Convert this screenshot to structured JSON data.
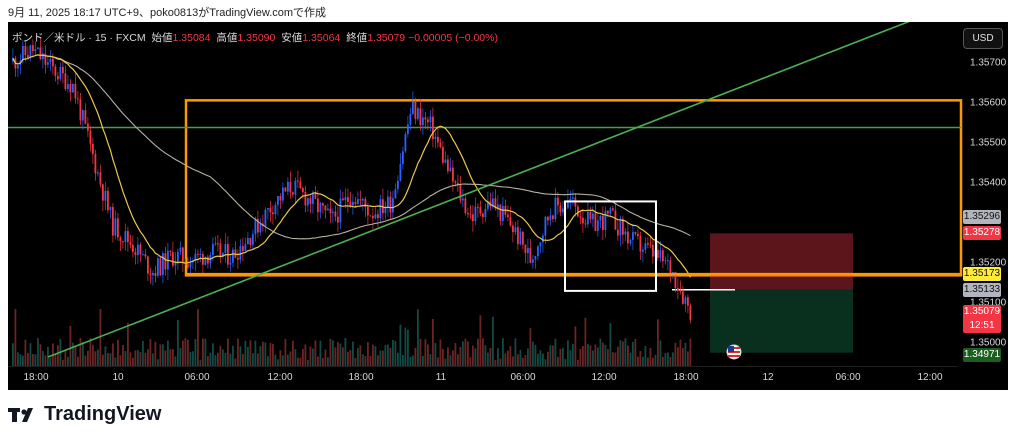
{
  "caption": "9月 11, 2025 18:17 UTC+9、poko0813がTradingView.comで作成",
  "symbol": {
    "name": "ポンド／米ドル · 15 · FXCM",
    "open_label": "始値",
    "open": "1.35084",
    "high_label": "高値",
    "high": "1.35090",
    "low_label": "安値",
    "low": "1.35064",
    "close_label": "終値",
    "close": "1.35079",
    "change": "−0.00005 (−0.00%)"
  },
  "currency_button": "USD",
  "price_axis": {
    "ticks": [
      "1.35700",
      "1.35600",
      "1.35500",
      "1.35400",
      "1.35200",
      "1.35100",
      "1.35000"
    ],
    "tags": {
      "ma_long": "1.35296",
      "stop": "1.35278",
      "support": "1.35173",
      "entry": "1.35133",
      "last": "1.35079",
      "countdown": "12:51",
      "target": "1.34971"
    }
  },
  "time_axis": [
    "18:00",
    "10",
    "06:00",
    "12:00",
    "18:00",
    "11",
    "06:00",
    "12:00",
    "18:00",
    "12",
    "06:00",
    "12:00"
  ],
  "colors": {
    "up": "#2962ff",
    "down": "#f23645",
    "ma_fast": "#e9c84a",
    "ma_slow": "#b7b1a3",
    "trendline": "#4caf50",
    "range_box": "#ff9800",
    "hline_green": "#43a047",
    "tag_yellow": "#ffeb3b",
    "tag_red": "#f23645",
    "tag_grey": "#b2b5be",
    "tag_green": "#1b5e20"
  },
  "logo": "TradingView",
  "chart_data": {
    "type": "candlestick",
    "y_range": [
      1.3496,
      1.3577
    ],
    "annotations": {
      "range_box": [
        1.3562,
        1.3517
      ],
      "resistance_line": 1.3555,
      "support_line": 1.35173,
      "trendline": "rising, from 1.3496 to 1.3577",
      "selection_box": [
        1.3536,
        1.3513
      ],
      "long_position": {
        "entry": 1.35133,
        "stop": 1.35278,
        "target": 1.34971
      }
    },
    "close_path": [
      1.3572,
      1.3575,
      1.357,
      1.3566,
      1.3548,
      1.353,
      1.3525,
      1.3518,
      1.3522,
      1.3521,
      1.3523,
      1.3522,
      1.3528,
      1.3535,
      1.354,
      1.3536,
      1.3531,
      1.3538,
      1.3533,
      1.3536,
      1.356,
      1.3555,
      1.3542,
      1.3532,
      1.3536,
      1.353,
      1.3521,
      1.3534,
      1.3536,
      1.353,
      1.3532,
      1.3526,
      1.3523,
      1.3519,
      1.3508
    ]
  }
}
